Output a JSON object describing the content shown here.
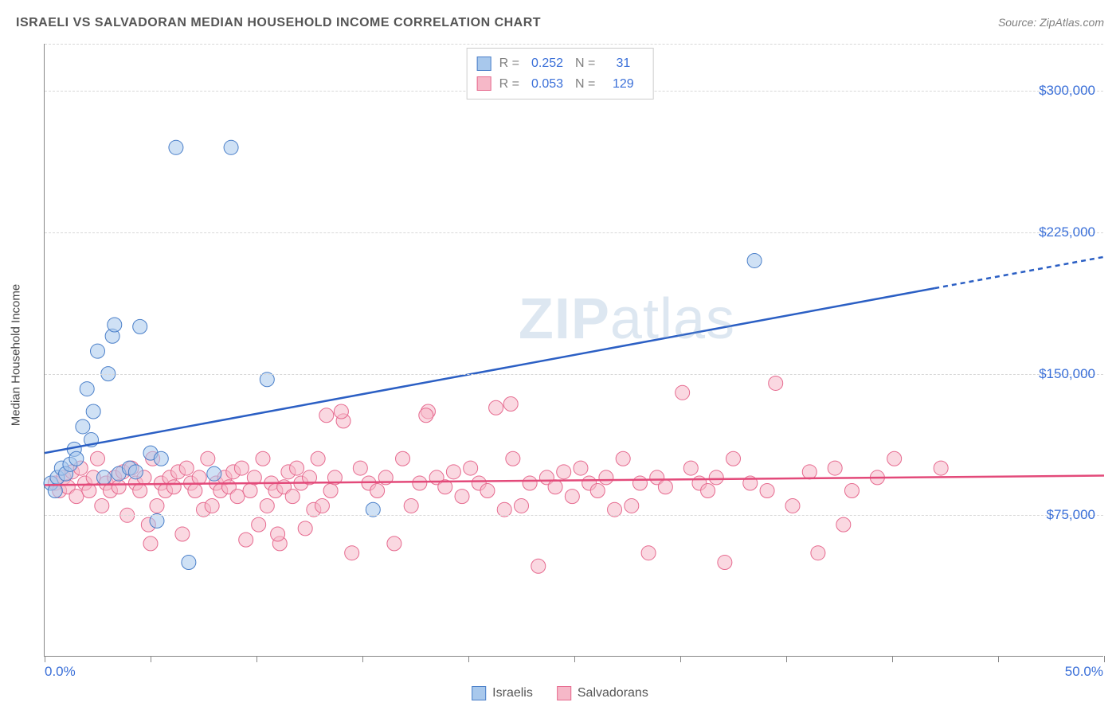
{
  "title": "ISRAELI VS SALVADORAN MEDIAN HOUSEHOLD INCOME CORRELATION CHART",
  "source": "Source: ZipAtlas.com",
  "watermark_bold": "ZIP",
  "watermark_rest": "atlas",
  "yaxis_title": "Median Household Income",
  "xaxis_left": "0.0%",
  "xaxis_right": "50.0%",
  "chart": {
    "type": "scatter",
    "background_color": "#ffffff",
    "grid_color": "#d8d8d8",
    "axis_color": "#888888",
    "xlim": [
      0,
      50
    ],
    "ylim": [
      0,
      325000
    ],
    "xtick_positions": [
      0,
      5,
      10,
      15,
      20,
      25,
      30,
      35,
      40,
      45,
      50
    ],
    "ytick_positions": [
      75000,
      150000,
      225000,
      300000
    ],
    "ytick_labels": [
      "$75,000",
      "$150,000",
      "$225,000",
      "$300,000"
    ],
    "marker_radius": 9,
    "marker_opacity": 0.55,
    "line_width": 2.5,
    "series": [
      {
        "name": "Israelis",
        "legend_label": "Israelis",
        "fill_color": "#a8c8ec",
        "stroke_color": "#4a7fc9",
        "line_color": "#2b5fc4",
        "r_value": "0.252",
        "n_value": "31",
        "trend": {
          "x1": 0,
          "y1": 108000,
          "x2": 50,
          "y2": 212000,
          "dash_from_x": 42
        },
        "points": [
          [
            0.3,
            92000
          ],
          [
            0.5,
            88000
          ],
          [
            0.6,
            95000
          ],
          [
            0.8,
            100000
          ],
          [
            1.0,
            97000
          ],
          [
            1.2,
            102000
          ],
          [
            1.4,
            110000
          ],
          [
            1.8,
            122000
          ],
          [
            2.0,
            142000
          ],
          [
            2.2,
            115000
          ],
          [
            2.5,
            162000
          ],
          [
            2.8,
            95000
          ],
          [
            3.0,
            150000
          ],
          [
            3.2,
            170000
          ],
          [
            3.3,
            176000
          ],
          [
            3.5,
            97000
          ],
          [
            4.0,
            100000
          ],
          [
            4.3,
            98000
          ],
          [
            4.5,
            175000
          ],
          [
            5.0,
            108000
          ],
          [
            5.3,
            72000
          ],
          [
            5.5,
            105000
          ],
          [
            6.2,
            270000
          ],
          [
            6.8,
            50000
          ],
          [
            8.8,
            270000
          ],
          [
            10.5,
            147000
          ],
          [
            8.0,
            97000
          ],
          [
            15.5,
            78000
          ],
          [
            33.5,
            210000
          ],
          [
            1.5,
            105000
          ],
          [
            2.3,
            130000
          ]
        ]
      },
      {
        "name": "Salvadorans",
        "legend_label": "Salvadorans",
        "fill_color": "#f6b8c8",
        "stroke_color": "#e66a8f",
        "line_color": "#e34a7a",
        "r_value": "0.053",
        "n_value": "129",
        "trend": {
          "x1": 0,
          "y1": 91000,
          "x2": 50,
          "y2": 96000,
          "dash_from_x": 50
        },
        "points": [
          [
            0.5,
            92000
          ],
          [
            0.7,
            88000
          ],
          [
            0.9,
            95000
          ],
          [
            1.1,
            90000
          ],
          [
            1.3,
            98000
          ],
          [
            1.5,
            85000
          ],
          [
            1.7,
            100000
          ],
          [
            1.9,
            92000
          ],
          [
            2.1,
            88000
          ],
          [
            2.3,
            95000
          ],
          [
            2.5,
            105000
          ],
          [
            2.7,
            80000
          ],
          [
            2.9,
            92000
          ],
          [
            3.1,
            88000
          ],
          [
            3.3,
            95000
          ],
          [
            3.5,
            90000
          ],
          [
            3.7,
            98000
          ],
          [
            3.9,
            75000
          ],
          [
            4.1,
            100000
          ],
          [
            4.3,
            92000
          ],
          [
            4.5,
            88000
          ],
          [
            4.7,
            95000
          ],
          [
            4.9,
            70000
          ],
          [
            5.1,
            105000
          ],
          [
            5.3,
            80000
          ],
          [
            5.5,
            92000
          ],
          [
            5.7,
            88000
          ],
          [
            5.9,
            95000
          ],
          [
            6.1,
            90000
          ],
          [
            6.3,
            98000
          ],
          [
            6.5,
            65000
          ],
          [
            6.7,
            100000
          ],
          [
            6.9,
            92000
          ],
          [
            7.1,
            88000
          ],
          [
            7.3,
            95000
          ],
          [
            7.5,
            78000
          ],
          [
            7.7,
            105000
          ],
          [
            7.9,
            80000
          ],
          [
            8.1,
            92000
          ],
          [
            8.3,
            88000
          ],
          [
            8.5,
            95000
          ],
          [
            8.7,
            90000
          ],
          [
            8.9,
            98000
          ],
          [
            9.1,
            85000
          ],
          [
            9.3,
            100000
          ],
          [
            9.5,
            62000
          ],
          [
            9.7,
            88000
          ],
          [
            9.9,
            95000
          ],
          [
            10.1,
            70000
          ],
          [
            10.3,
            105000
          ],
          [
            10.5,
            80000
          ],
          [
            10.7,
            92000
          ],
          [
            10.9,
            88000
          ],
          [
            11.1,
            60000
          ],
          [
            11.3,
            90000
          ],
          [
            11.5,
            98000
          ],
          [
            11.7,
            85000
          ],
          [
            11.9,
            100000
          ],
          [
            12.1,
            92000
          ],
          [
            12.3,
            68000
          ],
          [
            12.5,
            95000
          ],
          [
            12.7,
            78000
          ],
          [
            12.9,
            105000
          ],
          [
            13.1,
            80000
          ],
          [
            13.3,
            128000
          ],
          [
            13.5,
            88000
          ],
          [
            13.7,
            95000
          ],
          [
            14.1,
            125000
          ],
          [
            14.5,
            55000
          ],
          [
            14.9,
            100000
          ],
          [
            15.3,
            92000
          ],
          [
            15.7,
            88000
          ],
          [
            16.1,
            95000
          ],
          [
            16.5,
            60000
          ],
          [
            16.9,
            105000
          ],
          [
            17.3,
            80000
          ],
          [
            17.7,
            92000
          ],
          [
            18.1,
            130000
          ],
          [
            18.5,
            95000
          ],
          [
            18.9,
            90000
          ],
          [
            19.3,
            98000
          ],
          [
            19.7,
            85000
          ],
          [
            20.1,
            100000
          ],
          [
            20.5,
            92000
          ],
          [
            20.9,
            88000
          ],
          [
            21.3,
            132000
          ],
          [
            21.7,
            78000
          ],
          [
            22.1,
            105000
          ],
          [
            22.5,
            80000
          ],
          [
            22.9,
            92000
          ],
          [
            23.3,
            48000
          ],
          [
            23.7,
            95000
          ],
          [
            24.1,
            90000
          ],
          [
            24.5,
            98000
          ],
          [
            24.9,
            85000
          ],
          [
            25.3,
            100000
          ],
          [
            25.7,
            92000
          ],
          [
            26.1,
            88000
          ],
          [
            26.5,
            95000
          ],
          [
            26.9,
            78000
          ],
          [
            27.3,
            105000
          ],
          [
            27.7,
            80000
          ],
          [
            28.1,
            92000
          ],
          [
            28.5,
            55000
          ],
          [
            28.9,
            95000
          ],
          [
            29.3,
            90000
          ],
          [
            30.1,
            140000
          ],
          [
            30.5,
            100000
          ],
          [
            30.9,
            92000
          ],
          [
            31.3,
            88000
          ],
          [
            31.7,
            95000
          ],
          [
            32.1,
            50000
          ],
          [
            32.5,
            105000
          ],
          [
            33.3,
            92000
          ],
          [
            34.1,
            88000
          ],
          [
            34.5,
            145000
          ],
          [
            35.3,
            80000
          ],
          [
            36.1,
            98000
          ],
          [
            36.5,
            55000
          ],
          [
            37.3,
            100000
          ],
          [
            37.7,
            70000
          ],
          [
            38.1,
            88000
          ],
          [
            39.3,
            95000
          ],
          [
            40.1,
            105000
          ],
          [
            42.3,
            100000
          ],
          [
            5.0,
            60000
          ],
          [
            11.0,
            65000
          ],
          [
            14.0,
            130000
          ],
          [
            18.0,
            128000
          ],
          [
            22.0,
            134000
          ]
        ]
      }
    ]
  },
  "stats_legend": {
    "r_label": "R  =",
    "n_label": "N  ="
  }
}
